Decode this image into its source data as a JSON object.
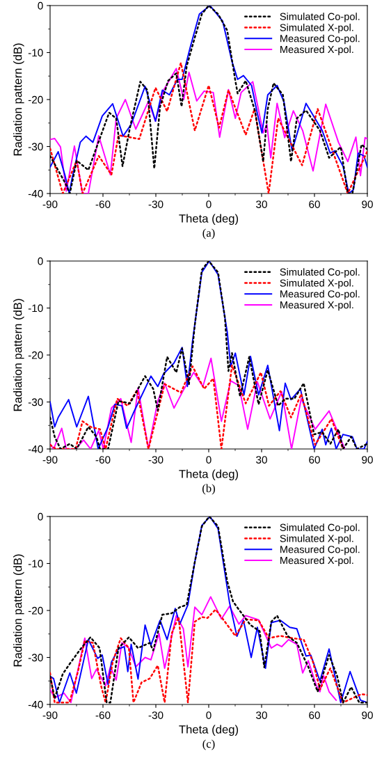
{
  "chart_data": [
    {
      "type": "line",
      "xlabel": "Theta (deg)",
      "ylabel": "Radiation pattern (dB)",
      "annotations": [
        "(a)"
      ],
      "xlim": [
        -90,
        90
      ],
      "ylim": [
        -40,
        0
      ],
      "xticks": [
        -90,
        -60,
        -30,
        0,
        30,
        60,
        90
      ],
      "yticks": [
        -40,
        -30,
        -20,
        -10,
        0
      ],
      "legend": "top right",
      "series": [
        {
          "name": "Simulated Co-pol.",
          "color": "#000000",
          "line_style": "dotted",
          "x": [
            -90,
            -81.5,
            -78.8,
            -74.9,
            -68.3,
            -56.5,
            -52.5,
            -48.9,
            -44.7,
            -38.8,
            -34.8,
            -30.9,
            -27.6,
            -23,
            -18.4,
            -15.4,
            -12.5,
            -7.9,
            -3.9,
            0,
            5.3,
            10.5,
            15.1,
            16.4,
            21,
            26.3,
            30.9,
            33.5,
            36.8,
            42.1,
            46.7,
            50,
            55.2,
            63.1,
            68.3,
            74.9,
            78.9,
            81.5,
            86.7,
            90
          ],
          "values": [
            -32,
            -37.7,
            -40,
            -33,
            -35,
            -22.8,
            -24,
            -34.2,
            -26,
            -16.2,
            -18,
            -34.7,
            -21.5,
            -16,
            -14.4,
            -21.5,
            -12.9,
            -6.8,
            -1.8,
            0,
            -1.8,
            -5.3,
            -16,
            -18.7,
            -16,
            -22.5,
            -33.2,
            -22,
            -16.5,
            -19,
            -33.2,
            -24,
            -22.3,
            -26.6,
            -32.4,
            -30.1,
            -40,
            -40,
            -29.6,
            -30.6
          ]
        },
        {
          "name": "Simulated X-pol.",
          "color": "#ff0000",
          "line_style": "dotted",
          "x": [
            -90,
            -82.8,
            -74.9,
            -71.6,
            -62.4,
            -55.2,
            -51.2,
            -39.4,
            -30.2,
            -23.6,
            -15.8,
            -7.9,
            0,
            5.9,
            11.2,
            21,
            26,
            34,
            39.4,
            53,
            61.8,
            78.9,
            90
          ],
          "values": [
            -30.4,
            -40,
            -33,
            -40,
            -32,
            -36,
            -27.6,
            -28.4,
            -17.5,
            -22.5,
            -12.2,
            -26.6,
            -17,
            -26,
            -18,
            -27.5,
            -22,
            -40,
            -24,
            -34,
            -22,
            -40,
            -31
          ]
        },
        {
          "name": "Measured Co-pol.",
          "color": "#0000ff",
          "line_style": "solid",
          "x": [
            -90,
            -85.4,
            -81.5,
            -79.1,
            -77.5,
            -72.9,
            -69.6,
            -65.7,
            -60.4,
            -54.5,
            -48.6,
            -44,
            -36.1,
            -30.2,
            -26.3,
            -22.3,
            -17.7,
            -15.1,
            -10.5,
            -5.3,
            0.7,
            7.9,
            13.2,
            16.4,
            19.7,
            24.3,
            27.6,
            30.2,
            33.5,
            38.8,
            42.7,
            47.3,
            55.2,
            64.4,
            68.9,
            71.6,
            76.2,
            79.5,
            82.1,
            84.8,
            88.1,
            90
          ],
          "values": [
            -34.4,
            -31.1,
            -36.2,
            -40,
            -36.7,
            -29.1,
            -27.8,
            -29.1,
            -23.5,
            -20.9,
            -27.8,
            -25.3,
            -17.2,
            -24.6,
            -18,
            -19,
            -15.7,
            -15.7,
            -8.9,
            -1.8,
            0,
            -3.3,
            -11.9,
            -15.7,
            -14.9,
            -17,
            -23,
            -27.1,
            -19,
            -17,
            -20.5,
            -30.9,
            -20.8,
            -26.6,
            -31.4,
            -30.9,
            -34.2,
            -40,
            -39.2,
            -31.4,
            -32,
            -34.4
          ]
        },
        {
          "name": "Measured X-pol.",
          "color": "#ff00ff",
          "line_style": "solid",
          "x": [
            -90,
            -87.4,
            -84.1,
            -80.8,
            -76.2,
            -71.6,
            -68.3,
            -62.4,
            -55.8,
            -52.5,
            -47.3,
            -41.4,
            -34.2,
            -30.2,
            -25.6,
            -18.4,
            -14.2,
            -11.2,
            -6.8,
            -2.6,
            2.6,
            6.2,
            11.2,
            15.1,
            18.4,
            25,
            30.9,
            33,
            35.2,
            38.8,
            43.1,
            48,
            53.3,
            59.2,
            66.4,
            73.6,
            78.9,
            83.5,
            86.1,
            88.7,
            90
          ],
          "values": [
            -28.5,
            -28.3,
            -30.1,
            -39.5,
            -29.9,
            -40,
            -40,
            -27.7,
            -36,
            -24,
            -20,
            -26.3,
            -20.4,
            -24.6,
            -18,
            -13.4,
            -20,
            -14.2,
            -20.3,
            -18.2,
            -18.5,
            -28,
            -17.9,
            -24,
            -18.5,
            -16.2,
            -27.1,
            -25.3,
            -32.4,
            -20.8,
            -28.1,
            -22.4,
            -26.6,
            -35.2,
            -21,
            -29.1,
            -33.2,
            -28,
            -36.2,
            -28.1,
            -28.4
          ]
        }
      ]
    },
    {
      "type": "line",
      "xlabel": "Theta (deg)",
      "ylabel": "Radiation pattern (dB)",
      "annotations": [
        "(b)"
      ],
      "xlim": [
        -90,
        90
      ],
      "ylim": [
        -40,
        0
      ],
      "xticks": [
        -90,
        -60,
        -30,
        0,
        30,
        60,
        90
      ],
      "yticks": [
        -40,
        -30,
        -20,
        -10,
        0
      ],
      "legend": "top right",
      "series": [
        {
          "name": "Simulated Co-pol.",
          "color": "#000000",
          "line_style": "dotted",
          "x": [
            -90,
            -87.4,
            -84.1,
            -78.8,
            -74.9,
            -68.3,
            -63.7,
            -61.7,
            -57.1,
            -51.2,
            -44.7,
            -36.1,
            -31.5,
            -28.9,
            -23.6,
            -18.4,
            -15.1,
            -11.2,
            -7.9,
            -3.9,
            0,
            5.3,
            9.2,
            11.2,
            13.2,
            17.8,
            23,
            28.3,
            33.5,
            39.4,
            43.4,
            48.6,
            53.9,
            59.8,
            64.4,
            69,
            73.6,
            76.2,
            80.8,
            84.1,
            90
          ],
          "values": [
            -33.3,
            -37.4,
            -40,
            -38.9,
            -40,
            -35.3,
            -37.4,
            -40,
            -40,
            -29.8,
            -30.3,
            -24.5,
            -27.2,
            -31.8,
            -20.4,
            -23.7,
            -18.6,
            -26.2,
            -13.6,
            -1.9,
            0,
            -2.4,
            -12.1,
            -23.4,
            -19.6,
            -28.8,
            -20.4,
            -30.5,
            -23.2,
            -30.8,
            -29.3,
            -29.3,
            -26,
            -36.9,
            -36.4,
            -38.9,
            -35.8,
            -40,
            -37.4,
            -40,
            -38.9
          ]
        },
        {
          "name": "Simulated X-pol.",
          "color": "#ff0000",
          "line_style": "dotted",
          "x": [
            -90,
            -86.7,
            -75.5,
            -71.6,
            -67,
            -61.7,
            -58.5,
            -51.9,
            -46,
            -40.7,
            -34.2,
            -25,
            -15.8,
            -9.2,
            -2.6,
            2.6,
            7.2,
            13.2,
            21,
            29.6,
            34.2,
            40.7,
            46.7,
            52.5,
            60.4,
            69.6,
            76.2
          ],
          "values": [
            -39.1,
            -40,
            -40,
            -34.1,
            -35.3,
            -35.8,
            -40,
            -29.3,
            -30.8,
            -27.5,
            -40,
            -26.2,
            -28,
            -22.4,
            -27.2,
            -25,
            -40,
            -22.2,
            -30.3,
            -23.7,
            -30.8,
            -27.7,
            -33.3,
            -28.3,
            -39.1,
            -33.6,
            -40
          ]
        },
        {
          "name": "Measured Co-pol.",
          "color": "#0000ff",
          "line_style": "solid",
          "x": [
            -90,
            -87.4,
            -85.4,
            -79.5,
            -74.9,
            -68.3,
            -62.7,
            -57.1,
            -53.2,
            -49.3,
            -46.6,
            -42.7,
            -32.8,
            -28.9,
            -25.6,
            -19.7,
            -15.1,
            -12.1,
            -9.2,
            -3.9,
            0.3,
            5.3,
            10.5,
            12.5,
            15.1,
            20,
            23.7,
            28.3,
            33.5,
            40.1,
            43.4,
            46.7,
            52,
            59.8,
            64.4,
            66.4,
            69.6,
            72.3,
            76.2,
            81.5,
            84.1,
            88.1,
            90
          ],
          "values": [
            -30,
            -35.3,
            -33.3,
            -29.5,
            -35.3,
            -28.8,
            -40,
            -35.3,
            -30.5,
            -30.8,
            -35.6,
            -32.3,
            -24.5,
            -26.7,
            -24,
            -21.7,
            -18.4,
            -26.7,
            -17.1,
            -2.4,
            0,
            -2.9,
            -15.1,
            -22.4,
            -19.6,
            -28.5,
            -20.3,
            -28.5,
            -22.2,
            -36.1,
            -26,
            -29.5,
            -27.2,
            -40,
            -35.8,
            -39.1,
            -35.6,
            -40,
            -36.9,
            -37.4,
            -40,
            -40,
            -38.4
          ]
        },
        {
          "name": "Measured X-pol.",
          "color": "#ff00ff",
          "line_style": "solid",
          "x": [
            -90,
            -88,
            -83.4,
            -80.8,
            -75.5,
            -71,
            -67,
            -62.4,
            -59.8,
            -55.2,
            -49.9,
            -44,
            -40.1,
            -34.2,
            -28.9,
            -25,
            -19.7,
            -14.4,
            -8.5,
            -3.3,
            1.3,
            7.2,
            12.5,
            17.1,
            22.1,
            27.6,
            34.8,
            41.4,
            47,
            52.5,
            60.4,
            68.3,
            77.2
          ],
          "values": [
            -38.9,
            -40,
            -35.6,
            -40,
            -40,
            -38.1,
            -40,
            -36.1,
            -40,
            -31.3,
            -29.3,
            -38.6,
            -27,
            -40,
            -29.8,
            -26,
            -31.3,
            -27.5,
            -23.7,
            -26.7,
            -20.7,
            -34.1,
            -25.5,
            -26.5,
            -35.8,
            -25.7,
            -33.6,
            -27.8,
            -40,
            -29.3,
            -35.8,
            -31.9,
            -40
          ]
        }
      ]
    },
    {
      "type": "line",
      "xlabel": "Theta (deg)",
      "ylabel": "Radiation pattern (dB)",
      "annotations": [
        "(c)"
      ],
      "xlim": [
        -90,
        90
      ],
      "ylim": [
        -40,
        0
      ],
      "xticks": [
        -90,
        -60,
        -30,
        0,
        30,
        60,
        90
      ],
      "yticks": [
        -40,
        -30,
        -20,
        -10,
        0
      ],
      "legend": "top right",
      "series": [
        {
          "name": "Simulated Co-pol.",
          "color": "#000000",
          "line_style": "dotted",
          "x": [
            -90,
            -87.4,
            -82.8,
            -78.2,
            -72.3,
            -67.1,
            -61.9,
            -57.9,
            -55.8,
            -51.2,
            -45.3,
            -40.1,
            -33.5,
            -31.5,
            -26.3,
            -21,
            -16.4,
            -12.5,
            -7.9,
            -3.9,
            0.3,
            5.3,
            10.5,
            13.8,
            17.1,
            23.7,
            28.9,
            31.5,
            35.5,
            38.8,
            44.7,
            50,
            56.5,
            61.8,
            68.3,
            72.9,
            76.2,
            80.8,
            85.4,
            90
          ],
          "values": [
            -34,
            -38.7,
            -33.5,
            -31,
            -28,
            -25.7,
            -28,
            -39.6,
            -39.6,
            -28,
            -25.7,
            -28,
            -26.9,
            -28.5,
            -20.9,
            -20.6,
            -19.3,
            -18.8,
            -9.7,
            -2.1,
            0,
            -2.1,
            -13.8,
            -18.1,
            -19.8,
            -23.1,
            -24.4,
            -32.1,
            -22.4,
            -21.1,
            -25.4,
            -26.9,
            -32,
            -37.3,
            -29.5,
            -34,
            -39.6,
            -36.3,
            -39.6,
            -39.6
          ]
        },
        {
          "name": "Simulated X-pol.",
          "color": "#ff0000",
          "line_style": "dotted",
          "x": [
            -90,
            -87.4,
            -79,
            -74.2,
            -70.3,
            -65.7,
            -61.1,
            -58.5,
            -54.5,
            -49.9,
            -45.3,
            -42.7,
            -38.1,
            -33.5,
            -28.9,
            -25,
            -21,
            -17.1,
            -11.8,
            -7.9,
            -3.9,
            -0.7,
            3.9,
            9.2,
            15.1,
            21,
            28.3,
            34.2,
            40.7,
            47.3,
            53.9,
            59.2,
            63.1,
            69,
            76.2,
            86.7,
            90
          ],
          "values": [
            -33.3,
            -39.6,
            -39.6,
            -33,
            -26.4,
            -26.9,
            -36,
            -39.6,
            -31,
            -25.9,
            -28,
            -39.6,
            -35.3,
            -34.5,
            -31.7,
            -39.6,
            -24.9,
            -21.4,
            -39.6,
            -22.4,
            -21.4,
            -21.6,
            -19.8,
            -22.4,
            -25.4,
            -21.9,
            -22.1,
            -25.9,
            -25.4,
            -25.9,
            -26.2,
            -31,
            -36.8,
            -32.3,
            -39.6,
            -37.8,
            -38
          ]
        },
        {
          "name": "Measured Co-pol.",
          "color": "#0000ff",
          "line_style": "solid",
          "x": [
            -90,
            -88,
            -84.7,
            -78.8,
            -75.1,
            -68.3,
            -63,
            -60.4,
            -57.1,
            -55.2,
            -51.2,
            -47.9,
            -45.9,
            -44,
            -40.1,
            -36.1,
            -32.8,
            -27.6,
            -23.6,
            -19,
            -16.4,
            -11.8,
            -7.9,
            -3.9,
            0.7,
            5.3,
            11.8,
            16,
            19.7,
            24.1,
            27.6,
            32.2,
            35.5,
            40.7,
            46,
            50,
            55.2,
            57.9,
            63.1,
            68.3,
            74.9,
            80.2,
            86.1,
            90
          ],
          "values": [
            -34,
            -34.5,
            -39.6,
            -33.3,
            -37.6,
            -26.2,
            -30.2,
            -29.5,
            -35.8,
            -31,
            -28.2,
            -27.7,
            -33,
            -27.2,
            -34.6,
            -23.1,
            -27.4,
            -22.1,
            -26.2,
            -19.6,
            -22.9,
            -18.8,
            -9.7,
            -1.9,
            0,
            -2.6,
            -18.3,
            -25.5,
            -22.1,
            -30,
            -23.6,
            -32.3,
            -22.6,
            -22.1,
            -23.6,
            -23.9,
            -29.7,
            -29.5,
            -35,
            -28.2,
            -39.6,
            -33,
            -39.1,
            -39.6
          ]
        },
        {
          "name": "Measured X-pol.",
          "color": "#ff00ff",
          "line_style": "solid",
          "x": [
            -90,
            -87.4,
            -82.1,
            -78.2,
            -70.3,
            -66.4,
            -63.7,
            -58.5,
            -55.8,
            -52.5,
            -49.3,
            -45.3,
            -41.4,
            -36.1,
            -32.8,
            -28.2,
            -25,
            -18.4,
            -14.4,
            -11.8,
            -7.9,
            -3.9,
            1.1,
            7.2,
            11.8,
            17.1,
            21,
            28.3,
            35.5,
            38.8,
            41.4,
            45.3,
            50,
            53.3,
            56.5,
            61.1,
            63.1,
            65.1,
            68.3,
            72.3
          ],
          "values": [
            -36.8,
            -38.6,
            -37.6,
            -39.6,
            -25.9,
            -34.5,
            -32.5,
            -36,
            -32,
            -34.8,
            -26.9,
            -28,
            -32,
            -30,
            -30.5,
            -24.9,
            -32.3,
            -21.1,
            -23.9,
            -32,
            -19.3,
            -20.9,
            -17.1,
            -21.8,
            -19.1,
            -22.9,
            -21.1,
            -22,
            -28,
            -27.2,
            -27.7,
            -26.2,
            -27.2,
            -33.3,
            -30.7,
            -36,
            -37.3,
            -33.8,
            -37.3,
            -39.1
          ]
        }
      ]
    }
  ]
}
